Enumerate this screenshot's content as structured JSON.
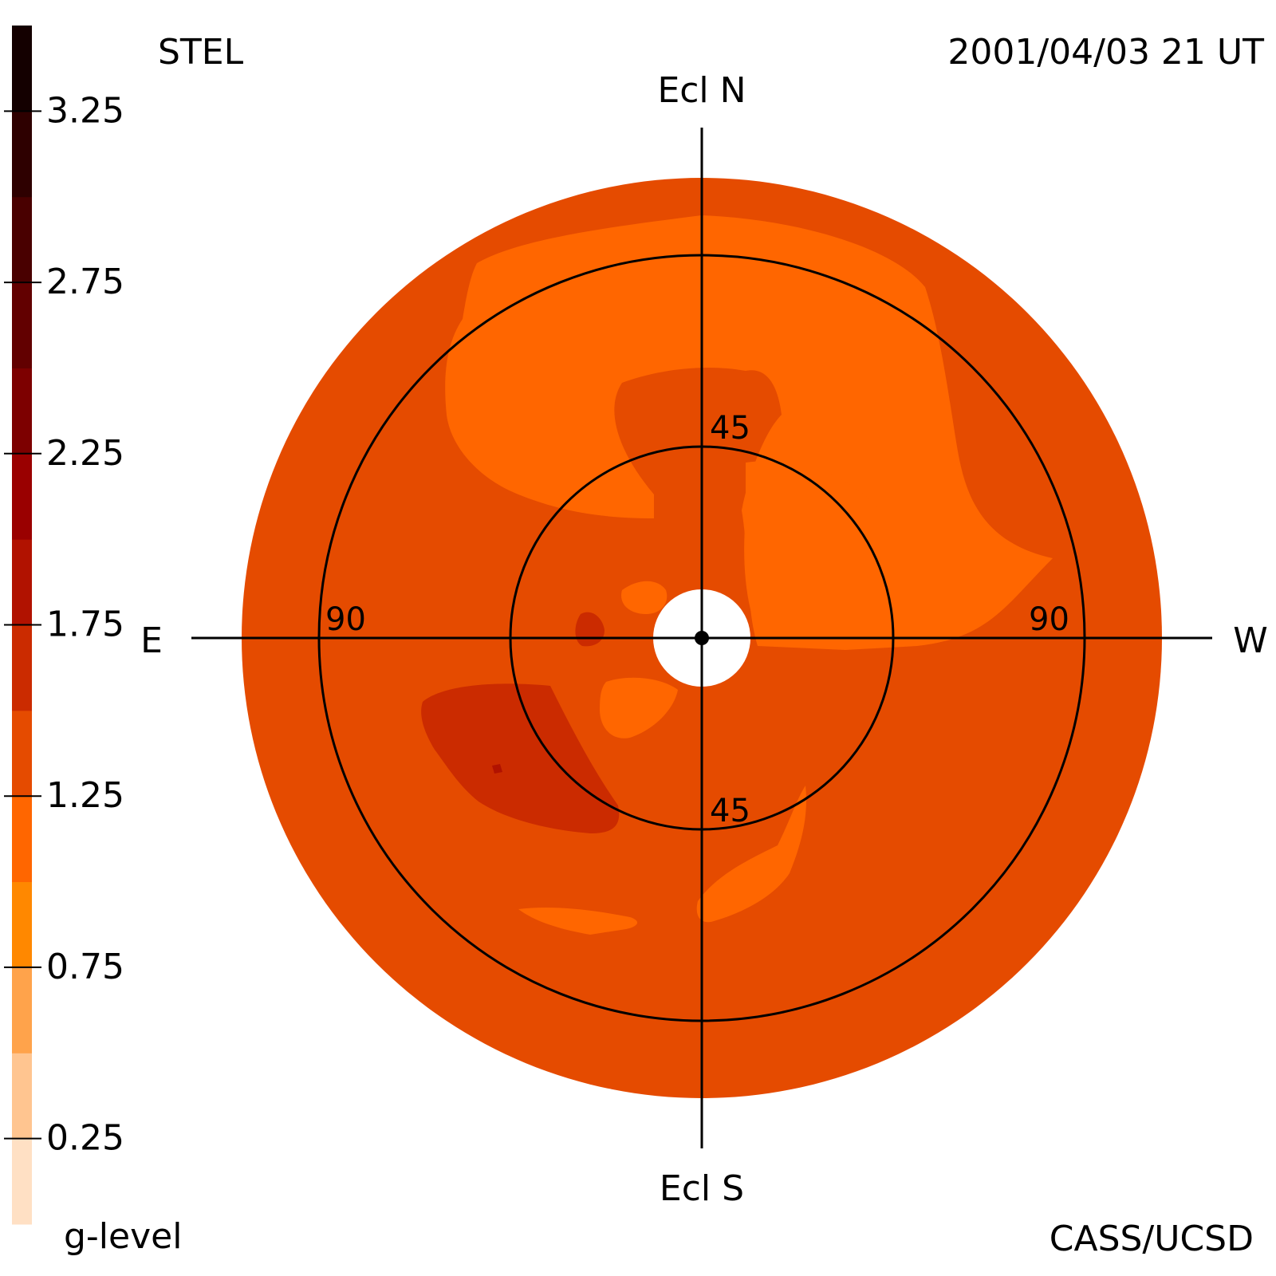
{
  "header": {
    "instrument": "STEL",
    "timestamp": "2001/04/03 21 UT",
    "credit": "CASS/UCSD"
  },
  "chart_data": {
    "type": "heatmap",
    "projection": "fisheye sky map",
    "directions": {
      "top": "Ecl N",
      "bottom": "Ecl S",
      "left": "E",
      "right": "W"
    },
    "ring_labels": [
      {
        "key": "n45",
        "text": "45"
      },
      {
        "key": "s45",
        "text": "45"
      },
      {
        "key": "e90",
        "text": "90"
      },
      {
        "key": "w90",
        "text": "90"
      }
    ],
    "colorbar": {
      "label": "g-level",
      "ticks": [
        "3.25",
        "2.75",
        "2.25",
        "1.75",
        "1.25",
        "0.75",
        "0.25"
      ],
      "range": [
        0,
        3.5
      ],
      "levels": [
        {
          "from": 0.0,
          "to": 0.25,
          "color": "#ffe0c4"
        },
        {
          "from": 0.25,
          "to": 0.5,
          "color": "#ffc590"
        },
        {
          "from": 0.5,
          "to": 0.75,
          "color": "#ffa34b"
        },
        {
          "from": 0.75,
          "to": 1.0,
          "color": "#ff8800"
        },
        {
          "from": 1.0,
          "to": 1.25,
          "color": "#ff6600"
        },
        {
          "from": 1.25,
          "to": 1.5,
          "color": "#e54b00"
        },
        {
          "from": 1.5,
          "to": 1.75,
          "color": "#cb2b00"
        },
        {
          "from": 1.75,
          "to": 2.0,
          "color": "#b11200"
        },
        {
          "from": 2.0,
          "to": 2.25,
          "color": "#9a0000"
        },
        {
          "from": 2.25,
          "to": 2.5,
          "color": "#7d0000"
        },
        {
          "from": 2.5,
          "to": 2.75,
          "color": "#620000"
        },
        {
          "from": 2.75,
          "to": 3.0,
          "color": "#490000"
        },
        {
          "from": 3.0,
          "to": 3.25,
          "color": "#2e0000"
        },
        {
          "from": 3.25,
          "to": 3.5,
          "color": "#140000"
        }
      ]
    },
    "regions": [
      {
        "name": "sky-background",
        "level": 1.375
      },
      {
        "name": "northern-arc",
        "level": 1.125
      },
      {
        "name": "west-inner-region",
        "level": 1.125
      },
      {
        "name": "east-west-band",
        "level": 1.125
      },
      {
        "name": "inner-blob-upper",
        "level": 1.125
      },
      {
        "name": "inner-blob-lower",
        "level": 1.125
      },
      {
        "name": "south-streak",
        "level": 1.125
      },
      {
        "name": "southwest-streak",
        "level": 1.125
      },
      {
        "name": "southeast-enhancement",
        "level": 1.625
      },
      {
        "name": "east-inner-spot",
        "level": 1.625
      },
      {
        "name": "southeast-core",
        "level": 1.875
      }
    ]
  }
}
